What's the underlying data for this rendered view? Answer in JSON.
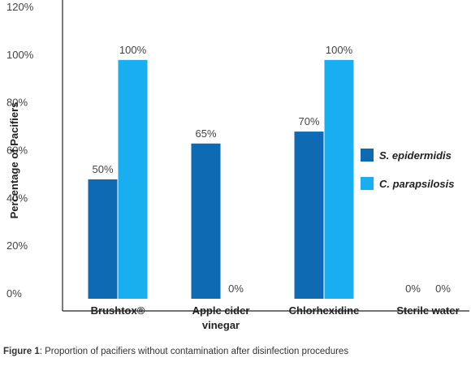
{
  "chart_data": {
    "type": "bar",
    "categories": [
      [
        "Brushtox®"
      ],
      [
        "Apple cider",
        "vinegar"
      ],
      [
        "Chlorhexidine"
      ],
      [
        "Sterile water"
      ]
    ],
    "series": [
      {
        "name": "S. epidermidis",
        "values": [
          50,
          65,
          70,
          0
        ],
        "labels": [
          "50%",
          "65%",
          "70%",
          "0%"
        ],
        "color": "#0d6ab3"
      },
      {
        "name": "C. parapsilosis",
        "values": [
          100,
          0,
          100,
          0
        ],
        "labels": [
          "100%",
          "0%",
          "100%",
          "0%"
        ],
        "color": "#18aef0"
      }
    ],
    "ylabel": "Percentage of Pacifiers",
    "ylim": [
      0,
      120
    ],
    "yticks": [
      0,
      20,
      40,
      60,
      80,
      100,
      120
    ],
    "ytick_labels": [
      "0%",
      "20%",
      "40%",
      "60%",
      "80%",
      "100%",
      "120%"
    ],
    "grid": false,
    "legend_position": "right"
  },
  "caption": {
    "lead": "Figure 1",
    "text": ":  Proportion of pacifiers without contamination after disinfection procedures"
  }
}
